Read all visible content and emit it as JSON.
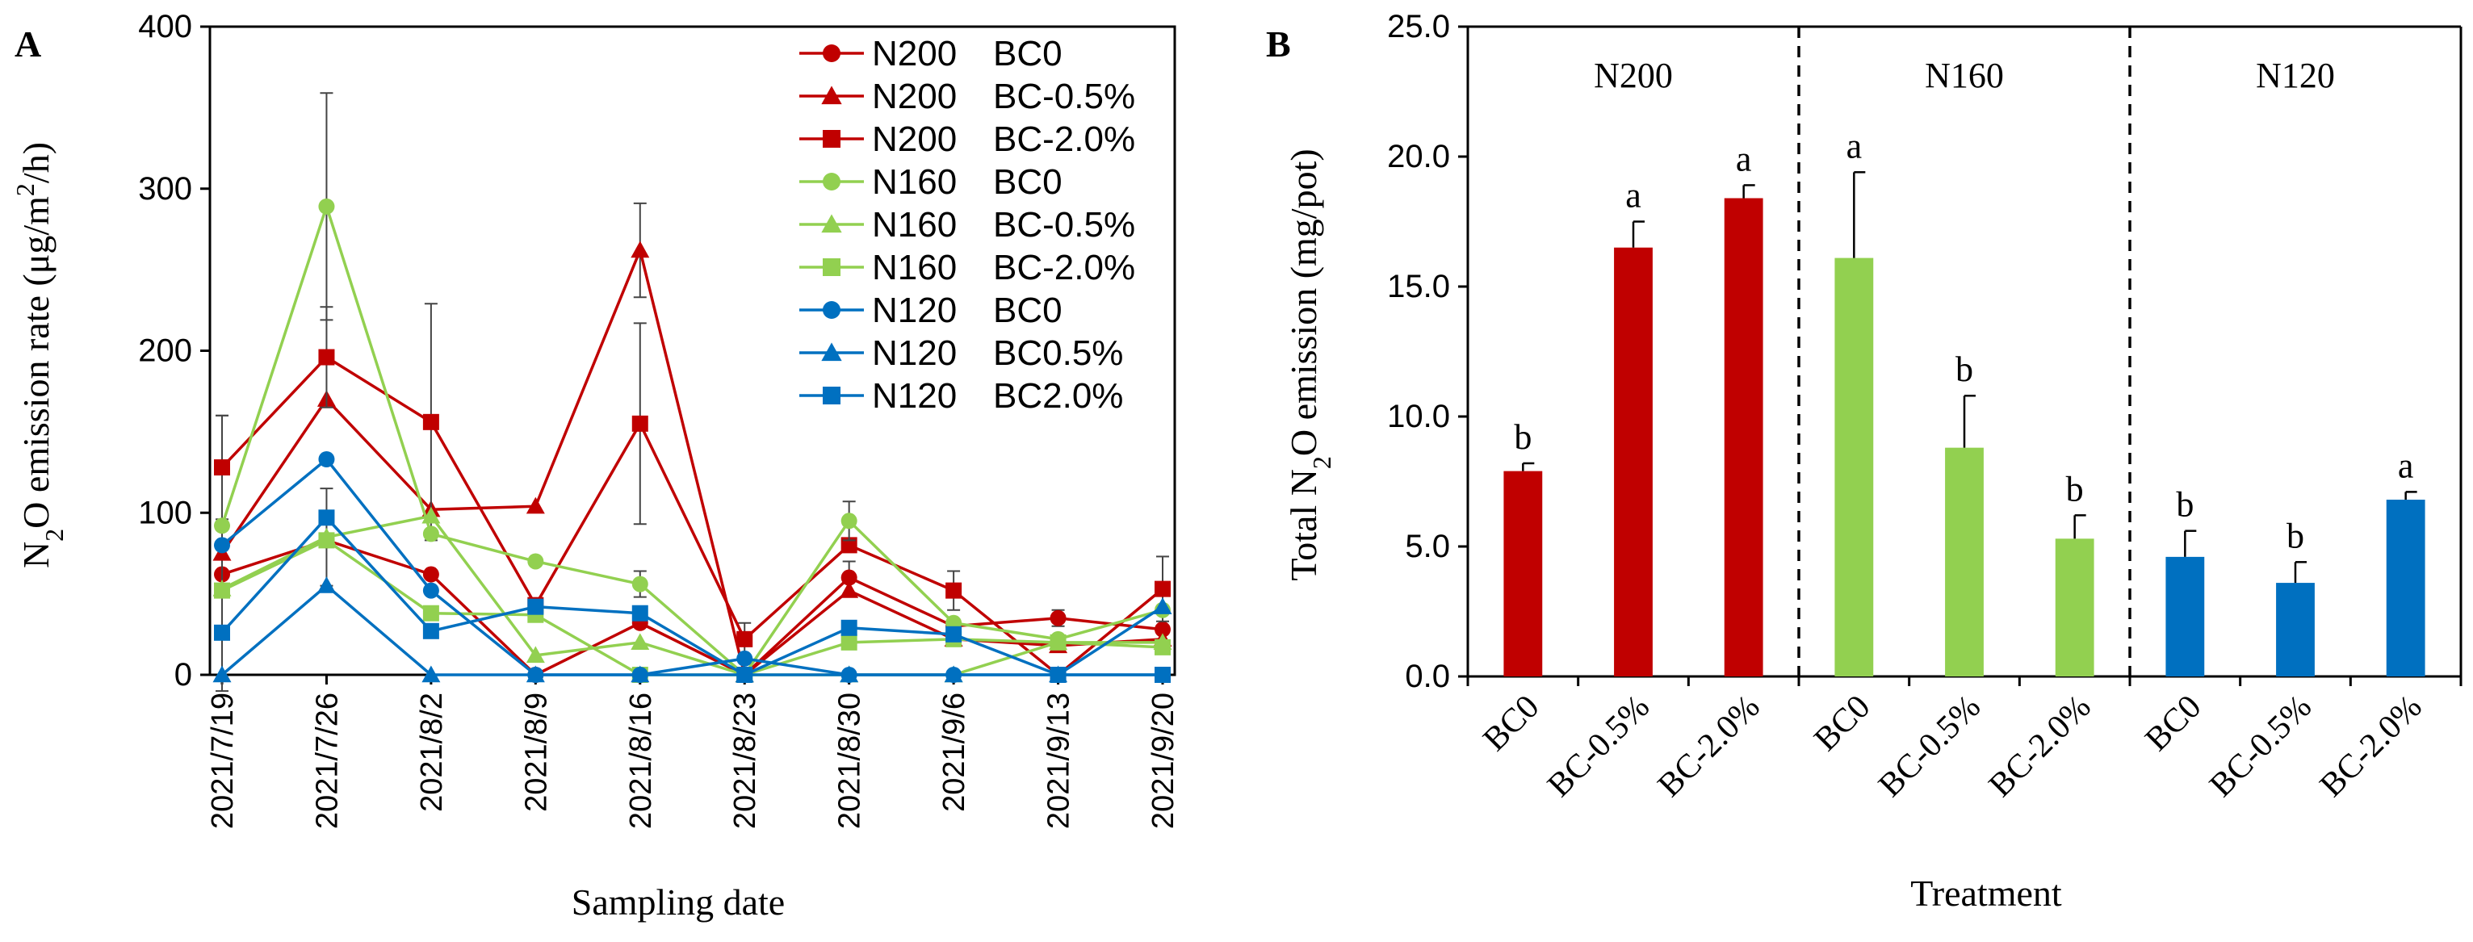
{
  "panel_a": {
    "label": "A",
    "chart_data": {
      "type": "line",
      "ylabel_prefix": "N",
      "ylabel_sub": "2",
      "ylabel_mid": "O emission rate (μg/m",
      "ylabel_sup": "2",
      "ylabel_suffix": "/h)",
      "xlabel": "Sampling date",
      "ylim": [
        0,
        400
      ],
      "yticks": [
        "0",
        "100",
        "200",
        "300",
        "400"
      ],
      "categories": [
        "2021/7/19",
        "2021/7/26",
        "2021/8/2",
        "2021/8/9",
        "2021/8/16",
        "2021/8/23",
        "2021/8/30",
        "2021/9/6",
        "2021/9/13",
        "2021/9/20"
      ],
      "series": [
        {
          "n": "N200",
          "bc": "BC0",
          "color": "#c00000",
          "marker": "circle",
          "values": [
            62,
            83,
            62,
            0,
            32,
            0,
            60,
            30,
            35,
            28
          ],
          "errors": [
            0,
            0,
            0,
            0,
            0,
            0,
            10,
            0,
            5,
            0
          ]
        },
        {
          "n": "N200",
          "bc": "BC-0.5%",
          "color": "#c00000",
          "marker": "triangle",
          "values": [
            75,
            170,
            102,
            104,
            262,
            0,
            52,
            22,
            18,
            22
          ],
          "errors": [
            85,
            0,
            0,
            0,
            29,
            0,
            0,
            0,
            0,
            0
          ]
        },
        {
          "n": "N200",
          "bc": "BC-2.0%",
          "color": "#c00000",
          "marker": "square",
          "values": [
            128,
            196,
            156,
            43,
            155,
            22,
            80,
            52,
            0,
            53
          ],
          "errors": [
            32,
            31,
            73,
            0,
            62,
            10,
            0,
            12,
            0,
            20
          ]
        },
        {
          "n": "N160",
          "bc": "BC0",
          "color": "#92d050",
          "marker": "circle",
          "values": [
            92,
            289,
            87,
            70,
            56,
            0,
            95,
            32,
            22,
            40
          ],
          "errors": [
            0,
            70,
            0,
            0,
            8,
            0,
            12,
            0,
            0,
            0
          ]
        },
        {
          "n": "N160",
          "bc": "BC-0.5%",
          "color": "#92d050",
          "marker": "triangle",
          "values": [
            53,
            85,
            98,
            12,
            20,
            0,
            0,
            0,
            20,
            20
          ],
          "errors": [
            0,
            30,
            0,
            0,
            0,
            0,
            0,
            0,
            0,
            0
          ]
        },
        {
          "n": "N160",
          "bc": "BC-2.0%",
          "color": "#92d050",
          "marker": "square",
          "values": [
            52,
            83,
            38,
            37,
            0,
            0,
            20,
            22,
            20,
            17
          ],
          "errors": [
            0,
            0,
            0,
            0,
            0,
            0,
            0,
            0,
            0,
            0
          ]
        },
        {
          "n": "N120",
          "bc": "BC0",
          "color": "#0070c0",
          "marker": "circle",
          "values": [
            80,
            133,
            52,
            0,
            0,
            10,
            0,
            0,
            0,
            0
          ],
          "errors": [
            0,
            0,
            0,
            0,
            0,
            0,
            0,
            0,
            0,
            0
          ]
        },
        {
          "n": "N120",
          "bc": "BC0.5%",
          "color": "#0070c0",
          "marker": "triangle",
          "values": [
            0,
            55,
            0,
            0,
            0,
            0,
            0,
            0,
            0,
            42
          ],
          "errors": [
            0,
            0,
            0,
            0,
            0,
            0,
            0,
            0,
            0,
            0
          ]
        },
        {
          "n": "N120",
          "bc": "BC2.0%",
          "color": "#0070c0",
          "marker": "square",
          "values": [
            26,
            97,
            27,
            42,
            38,
            0,
            29,
            25,
            0,
            0
          ],
          "errors": [
            0,
            0,
            0,
            0,
            0,
            0,
            0,
            0,
            0,
            0
          ]
        }
      ]
    }
  },
  "panel_b": {
    "label": "B",
    "chart_data": {
      "type": "bar",
      "ylabel_prefix": "Total N",
      "ylabel_sub": "2",
      "ylabel_suffix": "O emission (mg/pot)",
      "xlabel": "Treatment",
      "ylim": [
        0,
        25
      ],
      "yticks": [
        "0.0",
        "5.0",
        "10.0",
        "15.0",
        "20.0",
        "25.0"
      ],
      "groups": [
        {
          "name": "N200",
          "color": "#c00000",
          "bars": [
            {
              "label": "BC0",
              "value": 7.9,
              "error": 0.3,
              "letter": "b"
            },
            {
              "label": "BC-0.5%",
              "value": 16.5,
              "error": 1.0,
              "letter": "a"
            },
            {
              "label": "BC-2.0%",
              "value": 18.4,
              "error": 0.5,
              "letter": "a"
            }
          ]
        },
        {
          "name": "N160",
          "color": "#92d050",
          "bars": [
            {
              "label": "BC0",
              "value": 16.1,
              "error": 3.3,
              "letter": "a"
            },
            {
              "label": "BC-0.5%",
              "value": 8.8,
              "error": 2.0,
              "letter": "b"
            },
            {
              "label": "BC-2.0%",
              "value": 5.3,
              "error": 0.9,
              "letter": "b"
            }
          ]
        },
        {
          "name": "N120",
          "color": "#0070c0",
          "bars": [
            {
              "label": "BC0",
              "value": 4.6,
              "error": 1.0,
              "letter": "b"
            },
            {
              "label": "BC-0.5%",
              "value": 3.6,
              "error": 0.8,
              "letter": "b"
            },
            {
              "label": "BC-2.0%",
              "value": 6.8,
              "error": 0.3,
              "letter": "a"
            }
          ]
        }
      ]
    }
  }
}
